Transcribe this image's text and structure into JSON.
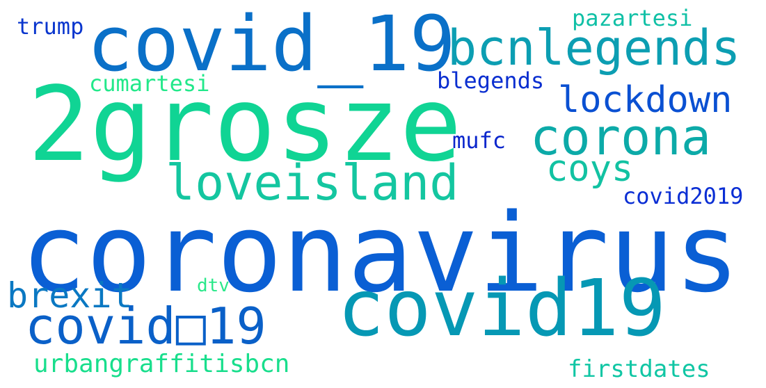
{
  "words": [
    {
      "id": "coronavirus",
      "text": "coronavirus",
      "color": "#0A5FD4"
    },
    {
      "id": "2grosze",
      "text": "2grosze",
      "color": "#10D494"
    },
    {
      "id": "covid19",
      "text": "covid19",
      "color": "#0698B4"
    },
    {
      "id": "covid_19",
      "text": "covid_19",
      "color": "#0A70C8"
    },
    {
      "id": "bcnlegends",
      "text": "bcnlegends",
      "color": "#0C9EB2"
    },
    {
      "id": "corona",
      "text": "corona",
      "color": "#0CAAA8"
    },
    {
      "id": "loveisland",
      "text": "loveisland",
      "color": "#14C6A0"
    },
    {
      "id": "covid_alt",
      "text": "covid□19",
      "color": "#0A60C8"
    },
    {
      "id": "lockdown",
      "text": "lockdown",
      "color": "#0A50D2"
    },
    {
      "id": "coys",
      "text": "coys",
      "color": "#12C2A2"
    },
    {
      "id": "brexit",
      "text": "brexit",
      "color": "#0A78C2"
    },
    {
      "id": "urbangraffitisbcn",
      "text": "urbangraffitisbcn",
      "color": "#18DE8C"
    },
    {
      "id": "firstdates",
      "text": "firstdates",
      "color": "#10C6A4"
    },
    {
      "id": "pazartesi",
      "text": "pazartesi",
      "color": "#10C0A6"
    },
    {
      "id": "trump",
      "text": "trump",
      "color": "#0A36CE"
    },
    {
      "id": "cumartesi",
      "text": "cumartesi",
      "color": "#22E88A"
    },
    {
      "id": "blegends",
      "text": "blegends",
      "color": "#0A2ED0"
    },
    {
      "id": "mufc",
      "text": "mufc",
      "color": "#0A26CC"
    },
    {
      "id": "covid2019",
      "text": "covid2019",
      "color": "#0A2ED4"
    },
    {
      "id": "dtv",
      "text": "dtv",
      "color": "#2AE88A"
    }
  ]
}
